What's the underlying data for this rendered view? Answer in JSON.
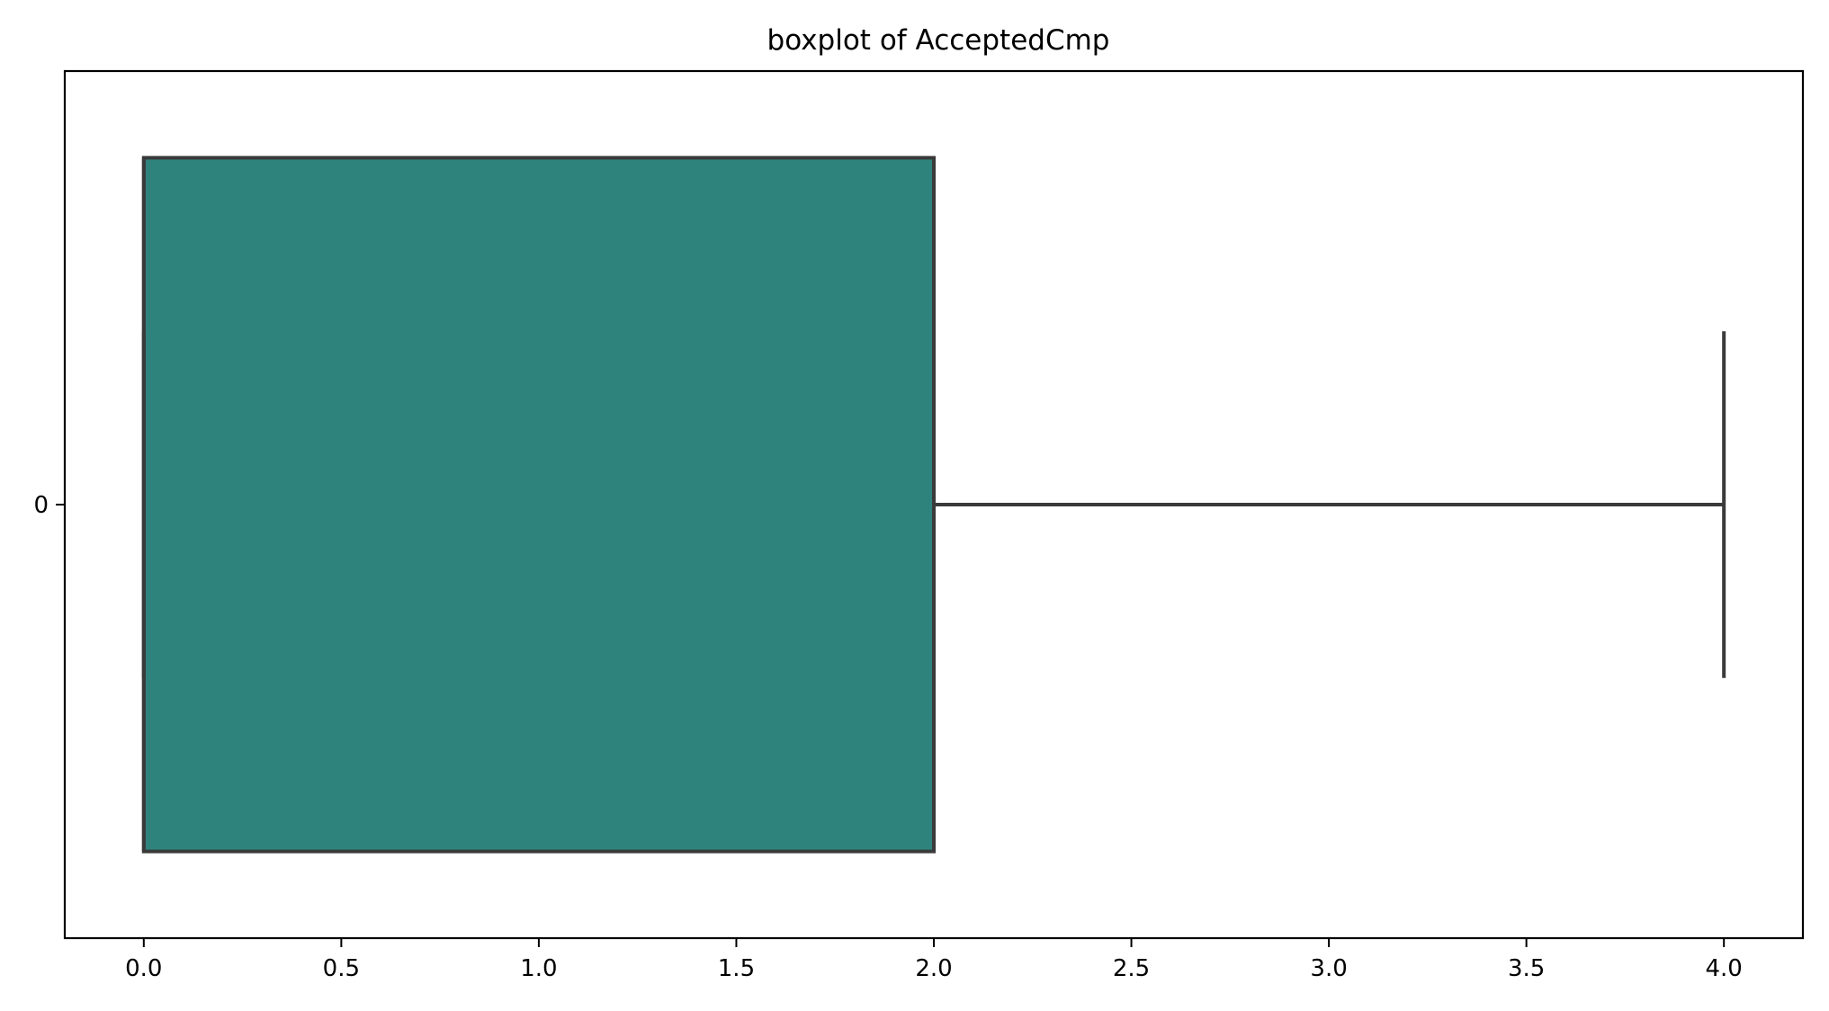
{
  "chart_data": {
    "type": "box",
    "title": "boxplot of AcceptedCmp",
    "orientation": "horizontal",
    "xlabel": "",
    "ylabel": "",
    "xlim": [
      -0.2,
      4.2
    ],
    "xticks": [
      "0.0",
      "0.5",
      "1.0",
      "1.5",
      "2.0",
      "2.5",
      "3.0",
      "3.5",
      "4.0"
    ],
    "xtick_values": [
      0,
      0.5,
      1,
      1.5,
      2,
      2.5,
      3,
      3.5,
      4
    ],
    "categories": [
      "0"
    ],
    "boxes": [
      {
        "category": "0",
        "whisker_low": 0,
        "q1": 0,
        "median": 0,
        "q3": 2,
        "whisker_high": 4,
        "outliers": []
      }
    ],
    "colors": {
      "box_fill": "#2e847d",
      "line": "#3a3a3a",
      "frame": "#000000"
    },
    "grid": false
  }
}
